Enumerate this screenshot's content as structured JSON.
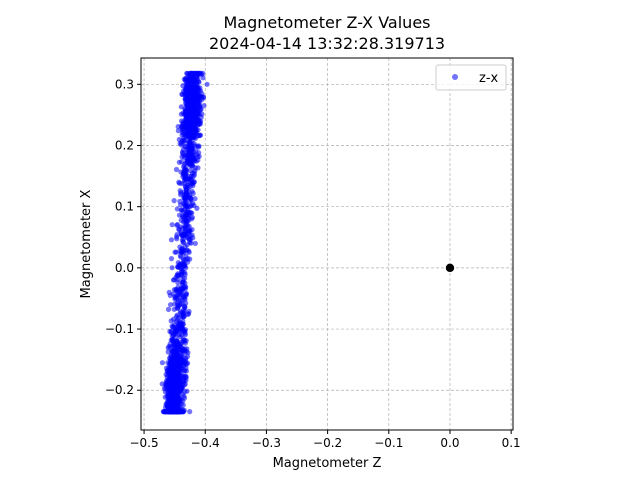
{
  "chart_data": {
    "type": "scatter",
    "title": "Magnetometer Z-X Values",
    "subtitle": "2024-04-14 13:32:28.319713",
    "xlabel": "Magnetometer Z",
    "ylabel": "Magnetometer X",
    "xlim": [
      -0.505,
      0.103
    ],
    "ylim": [
      -0.265,
      0.343
    ],
    "xticks": [
      -0.5,
      -0.4,
      -0.3,
      -0.2,
      -0.1,
      0.0,
      0.1
    ],
    "xtick_labels": [
      "−0.5",
      "−0.4",
      "−0.3",
      "−0.2",
      "−0.1",
      "0.0",
      "0.1"
    ],
    "yticks": [
      -0.2,
      -0.1,
      0.0,
      0.1,
      0.2,
      0.3
    ],
    "ytick_labels": [
      "−0.2",
      "−0.1",
      "0.0",
      "0.1",
      "0.2",
      "0.3"
    ],
    "grid": true,
    "legend_position": "top-right",
    "series": [
      {
        "name": "z-x",
        "color": "#0000ff",
        "alpha": 0.55,
        "point_count": 1800,
        "trend": {
          "z_at_x_min": -0.452,
          "z_at_x_max": -0.418,
          "x_min": -0.235,
          "x_max": 0.318
        },
        "sample_points": [
          [
            -0.462,
            -0.168
          ],
          [
            -0.455,
            -0.21
          ],
          [
            -0.446,
            -0.235
          ],
          [
            -0.47,
            -0.155
          ],
          [
            -0.446,
            -0.12
          ],
          [
            -0.44,
            -0.06
          ],
          [
            -0.432,
            0.0
          ],
          [
            -0.425,
            0.06
          ],
          [
            -0.43,
            0.12
          ],
          [
            -0.426,
            0.2
          ],
          [
            -0.42,
            0.26
          ],
          [
            -0.406,
            0.316
          ],
          [
            -0.41,
            0.29
          ],
          [
            -0.397,
            0.3
          ],
          [
            -0.425,
            0.1
          ],
          [
            -0.44,
            -0.15
          ]
        ]
      }
    ],
    "markers": [
      {
        "x": 0.0,
        "y": 0.0,
        "color": "#000000"
      }
    ]
  }
}
